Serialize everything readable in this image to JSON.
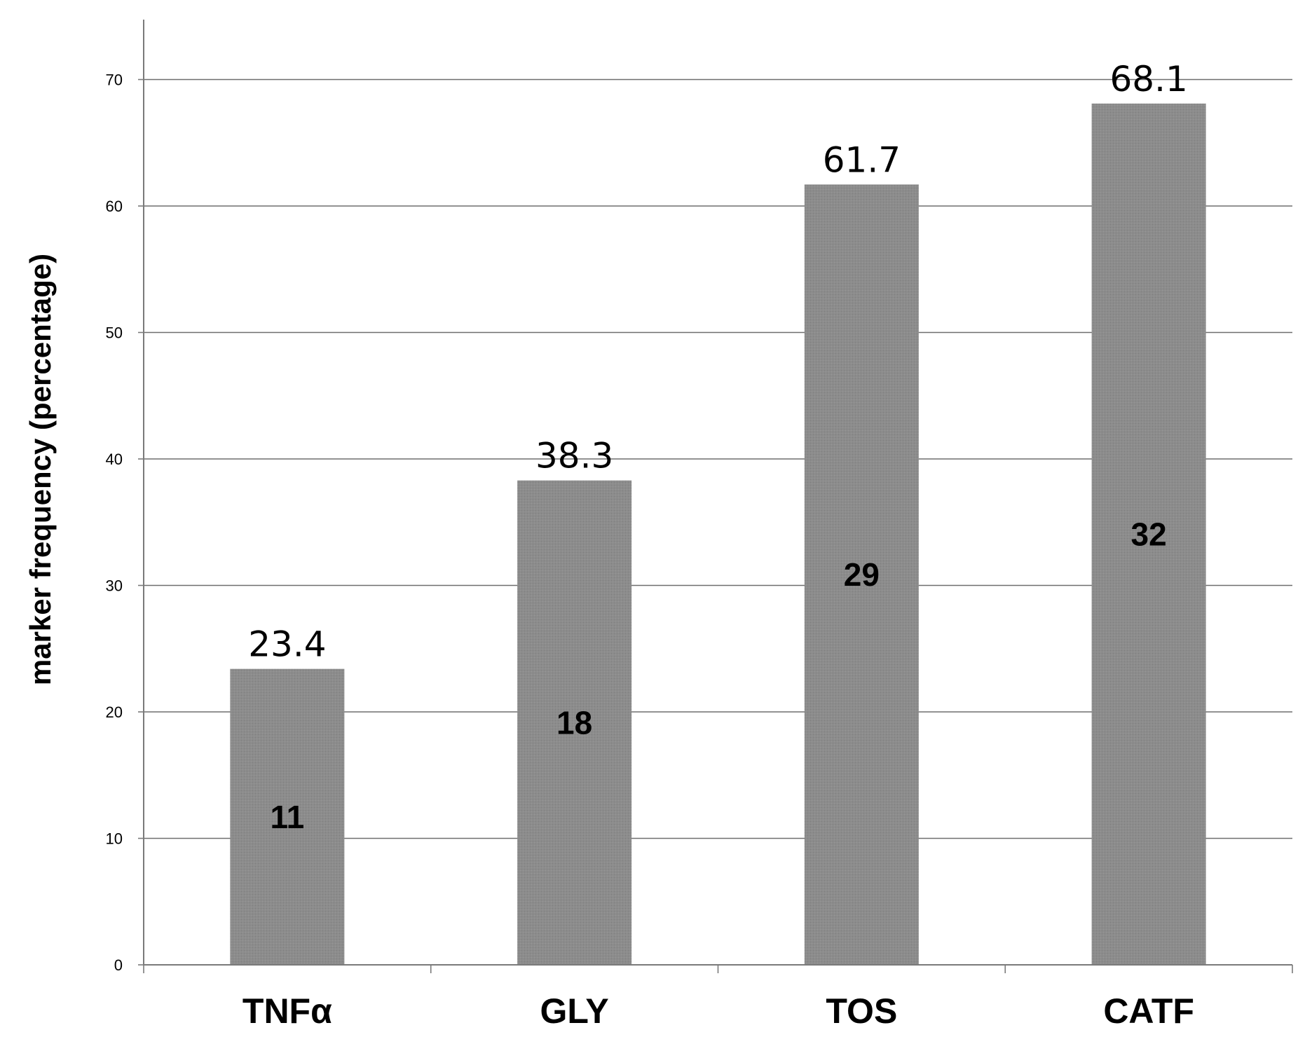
{
  "chart_data": {
    "type": "bar",
    "title": "",
    "xlabel": "",
    "ylabel": "marker frequency (percentage)",
    "categories": [
      "TNFα",
      "GLY",
      "TOS",
      "CATF"
    ],
    "values": [
      23.4,
      38.3,
      61.7,
      68.1
    ],
    "value_labels": [
      "23.4",
      "38.3",
      "61.7",
      "68.1"
    ],
    "count_labels": [
      "11",
      "18",
      "29",
      "32"
    ],
    "ylim": [
      0,
      75
    ],
    "yticks": [
      0,
      10,
      20,
      30,
      40,
      50,
      60,
      70
    ],
    "grid": true,
    "legend": "none",
    "colors": {
      "bar": "#8c8c8c",
      "grid": "#6e6e6e",
      "axis": "#7a7a7a"
    }
  }
}
